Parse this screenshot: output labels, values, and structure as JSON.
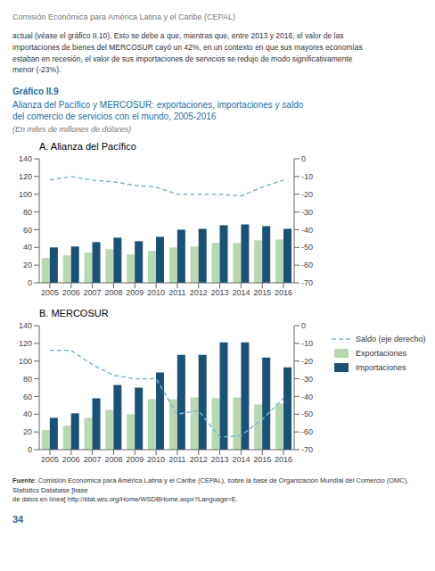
{
  "chart_data": [
    {
      "type": "bar",
      "title": "A. Alianza del Pacífico",
      "categories": [
        "2005",
        "2006",
        "2007",
        "2008",
        "2009",
        "2010",
        "2011",
        "2012",
        "2013",
        "2014",
        "2015",
        "2016"
      ],
      "series": [
        {
          "name": "Saldo (eje derecho)",
          "type": "line",
          "axis": "y2",
          "color": "#7ab8d4",
          "line_style": "dashed",
          "values": [
            -12,
            -10,
            -12,
            -13,
            -15,
            -16,
            -20,
            -20,
            -20,
            -21,
            -16,
            -12
          ]
        },
        {
          "name": "Exportaciones",
          "type": "bar",
          "color": "#b8d9b0",
          "values": [
            28,
            31,
            34,
            38,
            32,
            36,
            40,
            41,
            45,
            45,
            48,
            49
          ]
        },
        {
          "name": "Importaciones",
          "type": "bar",
          "color": "#1a5276",
          "values": [
            40,
            41,
            46,
            51,
            47,
            52,
            60,
            61,
            65,
            66,
            64,
            61
          ]
        }
      ],
      "ylim": [
        0,
        140
      ],
      "yticks": [
        0,
        20,
        40,
        60,
        80,
        100,
        120,
        140
      ],
      "y2lim": [
        -70,
        0
      ],
      "y2ticks": [
        0,
        -10,
        -20,
        -30,
        -40,
        -50,
        -60,
        -70
      ],
      "grid": false,
      "annotations": [
        "Comisión Económica para América Latina y el Caribe (CEPAL)",
        "actual (véase el gráfico II.10). Esto se debe a que, mientras que, entre 2013 y 2016, el valor de las\nimportaciones de bienes del MERCOSUR cayó un 42%, en un contexto en que sus mayores economías\nestaban en recesión, el valor de sus importaciones de servicios se redujo de modo significativamente\nmenor (-23%).",
        "Gráfico II.9",
        "Alianza del Pacífico y MERCOSUR: exportaciones, importaciones y saldo\ndel comercio de servicios con el mundo, 2005-2016",
        "(En miles de millones de dólares)"
      ]
    },
    {
      "type": "bar",
      "title": "B. MERCOSUR",
      "categories": [
        "2005",
        "2006",
        "2007",
        "2008",
        "2009",
        "2010",
        "2011",
        "2012",
        "2013",
        "2014",
        "2015",
        "2016"
      ],
      "series": [
        {
          "name": "Saldo (eje derecho)",
          "type": "line",
          "axis": "y2",
          "color": "#7ab8d4",
          "line_style": "dashed",
          "values": [
            -14,
            -14,
            -22,
            -28,
            -30,
            -30,
            -50,
            -48,
            -63,
            -62,
            -53,
            -41
          ]
        },
        {
          "name": "Exportaciones",
          "type": "bar",
          "color": "#b8d9b0",
          "values": [
            22,
            27,
            36,
            45,
            40,
            57,
            57,
            59,
            58,
            59,
            51,
            52
          ]
        },
        {
          "name": "Importaciones",
          "type": "bar",
          "color": "#1a5276",
          "values": [
            36,
            41,
            58,
            73,
            70,
            87,
            107,
            107,
            121,
            121,
            104,
            93
          ]
        }
      ],
      "ylim": [
        0,
        140
      ],
      "yticks": [
        0,
        20,
        40,
        60,
        80,
        100,
        120,
        140
      ],
      "y2lim": [
        -70,
        0
      ],
      "y2ticks": [
        0,
        -10,
        -20,
        -30,
        -40,
        -50,
        -60,
        -70
      ],
      "grid": false,
      "legend": "right",
      "annotations": [
        "Fuente",
        ": Comisión Económica para América Latina y el Caribe (CEPAL), sobre la base de Organización Mundial del Comercio (OMC), Statistics Database [base\nde datos en línea] http://stat.wto.org/Home/WSDBHome.aspx?Language=E.",
        "34"
      ]
    }
  ]
}
